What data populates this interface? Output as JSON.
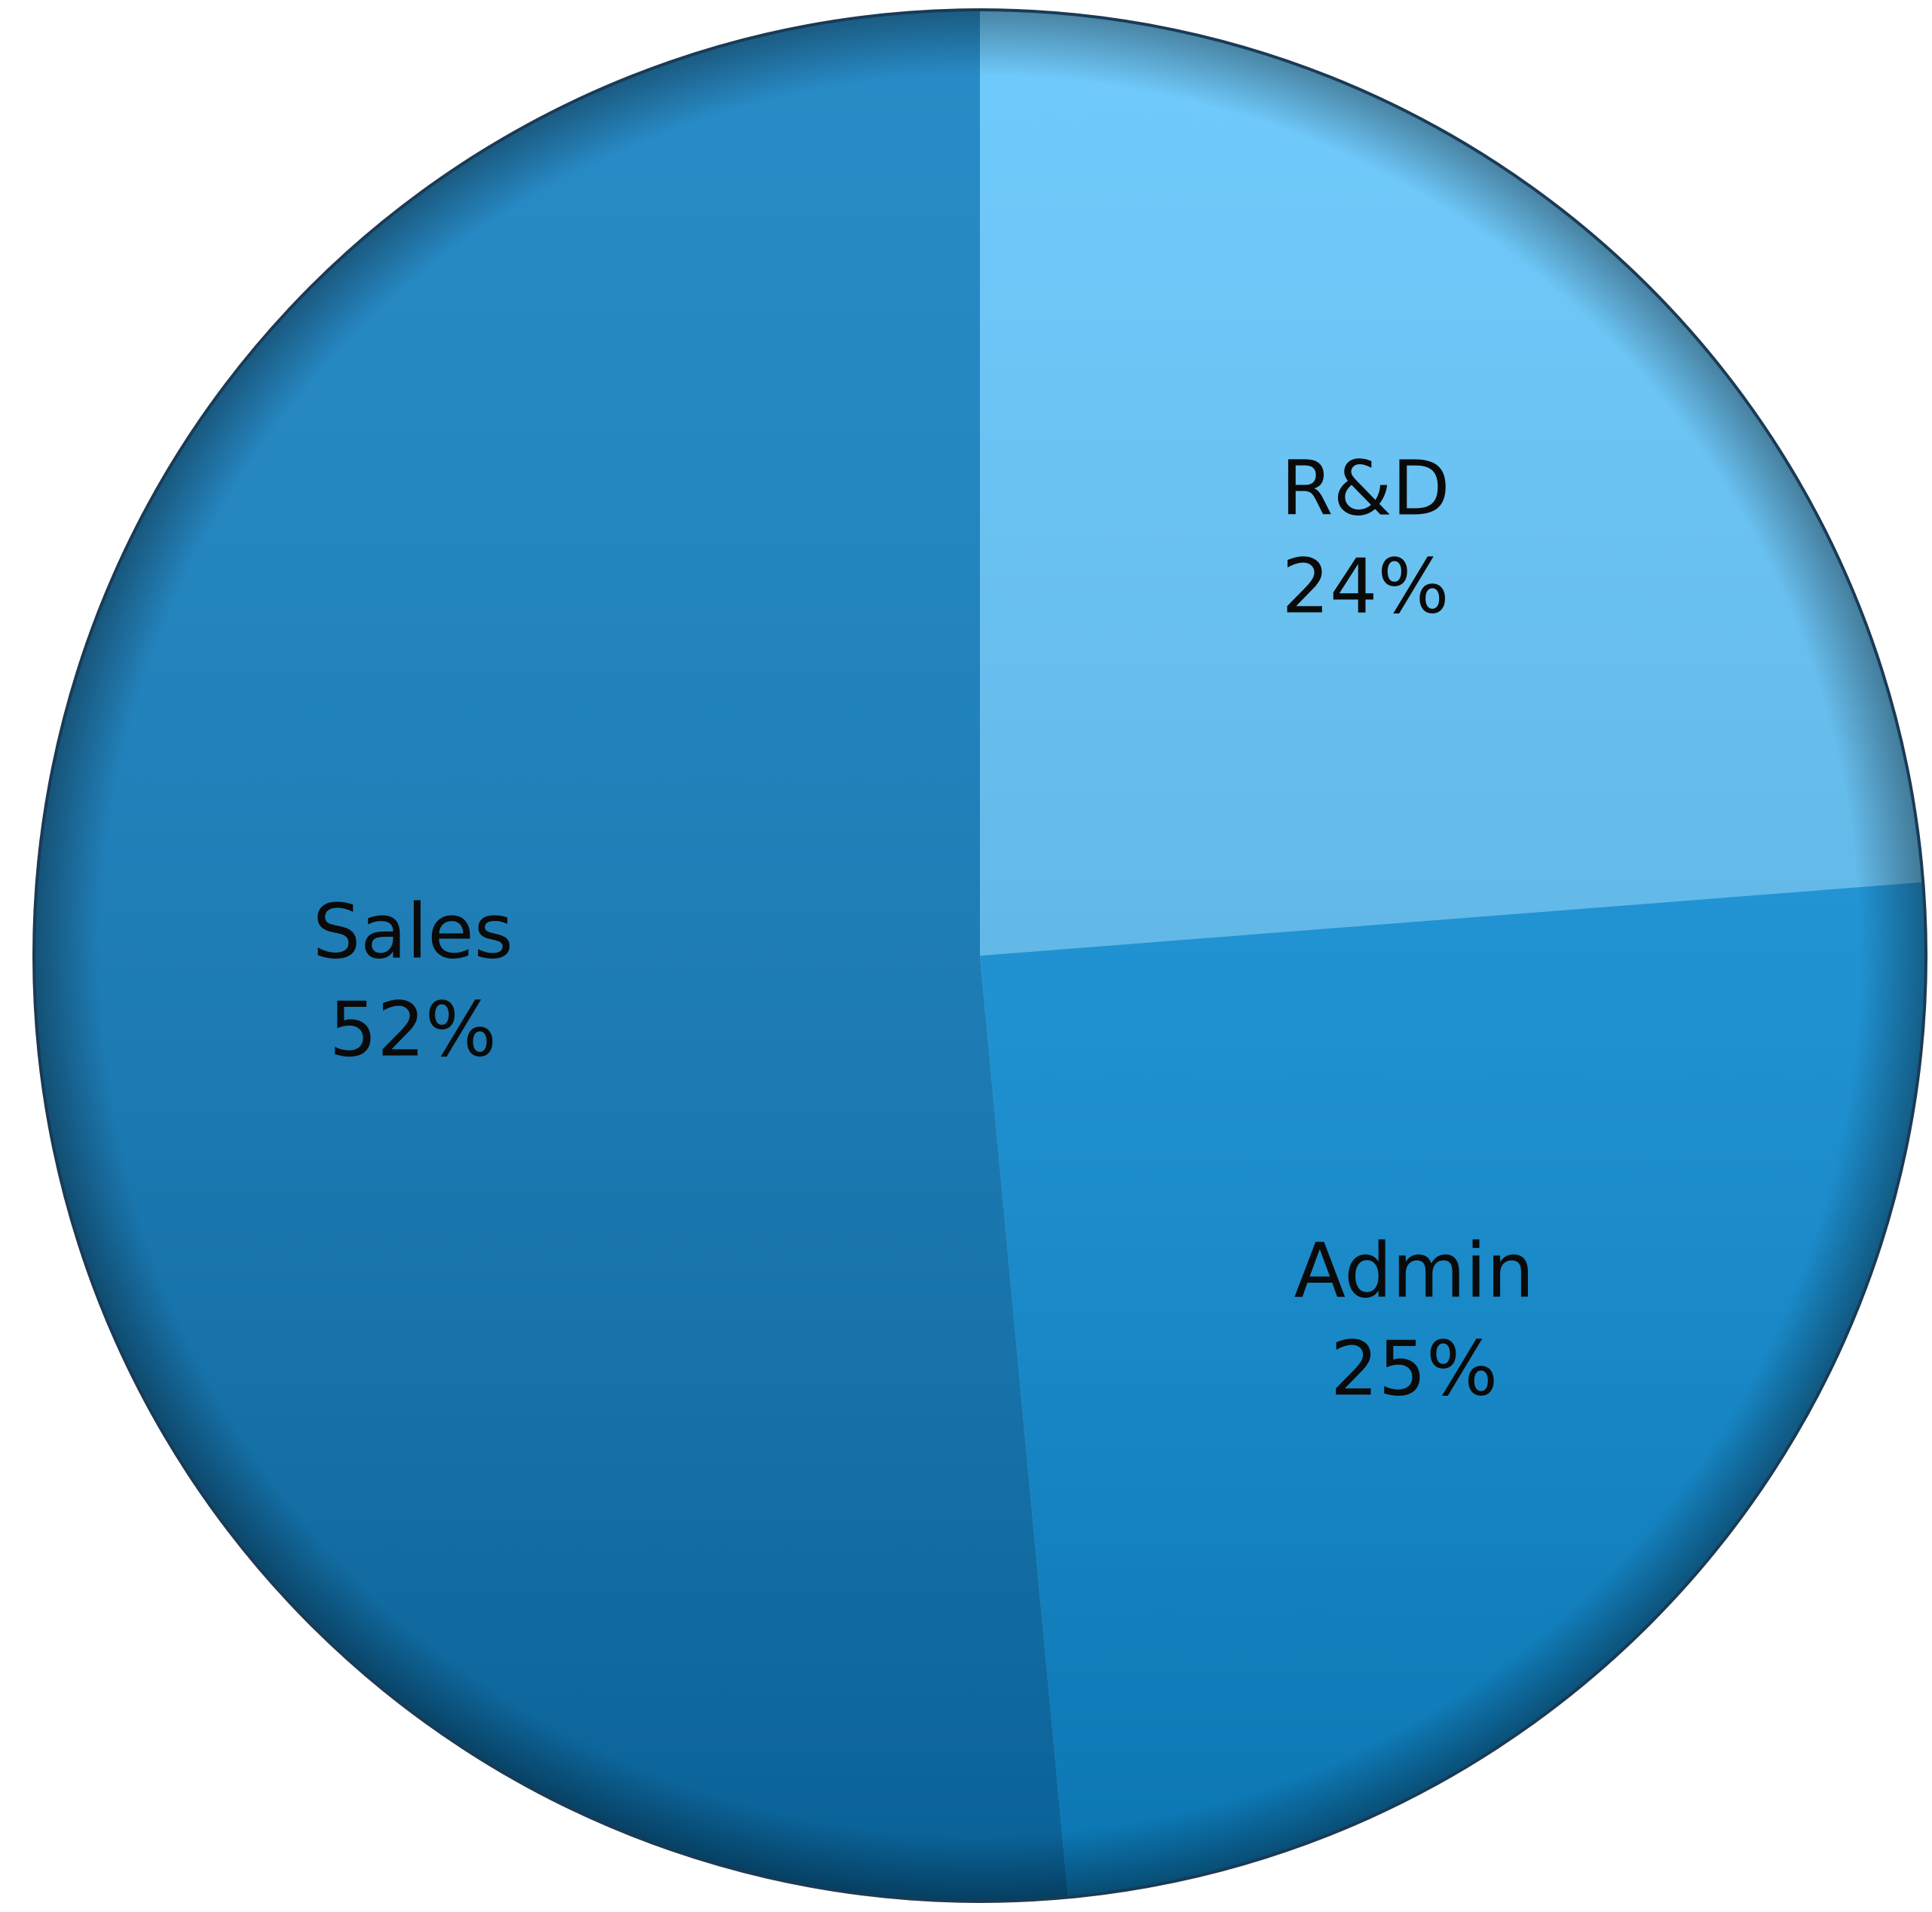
{
  "chart_data": {
    "type": "pie",
    "categories": [
      "R&D",
      "Admin",
      "Sales"
    ],
    "values": [
      24,
      25,
      52
    ],
    "value_labels": [
      "24%",
      "25%",
      "52%"
    ],
    "colors": [
      "#5cc3fb",
      "#0d96e3",
      "#0b7cc0"
    ]
  }
}
